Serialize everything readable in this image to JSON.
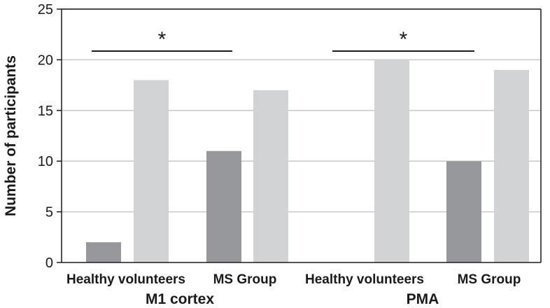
{
  "chart_data": {
    "type": "bar",
    "title": "",
    "ylabel": "Number of participants",
    "xlabel": "",
    "ylim": [
      0,
      25
    ],
    "yticks": [
      0,
      5,
      10,
      15,
      20,
      25
    ],
    "grid": true,
    "groups": [
      {
        "label": "M1 cortex",
        "categories": [
          {
            "label": "Healthy volunteers",
            "values": [
              2,
              18
            ]
          },
          {
            "label": "MS Group",
            "values": [
              11,
              17
            ]
          }
        ],
        "significance": "*"
      },
      {
        "label": "PMA",
        "categories": [
          {
            "label": "Healthy volunteers",
            "values": [
              0,
              20
            ]
          },
          {
            "label": "MS Group",
            "values": [
              10,
              19
            ]
          }
        ],
        "significance": "*"
      }
    ],
    "series_colors": [
      "#97989c",
      "#d2d3d5"
    ],
    "axis_color": "#1a1a1a",
    "grid_color": "#c8c8c8"
  }
}
